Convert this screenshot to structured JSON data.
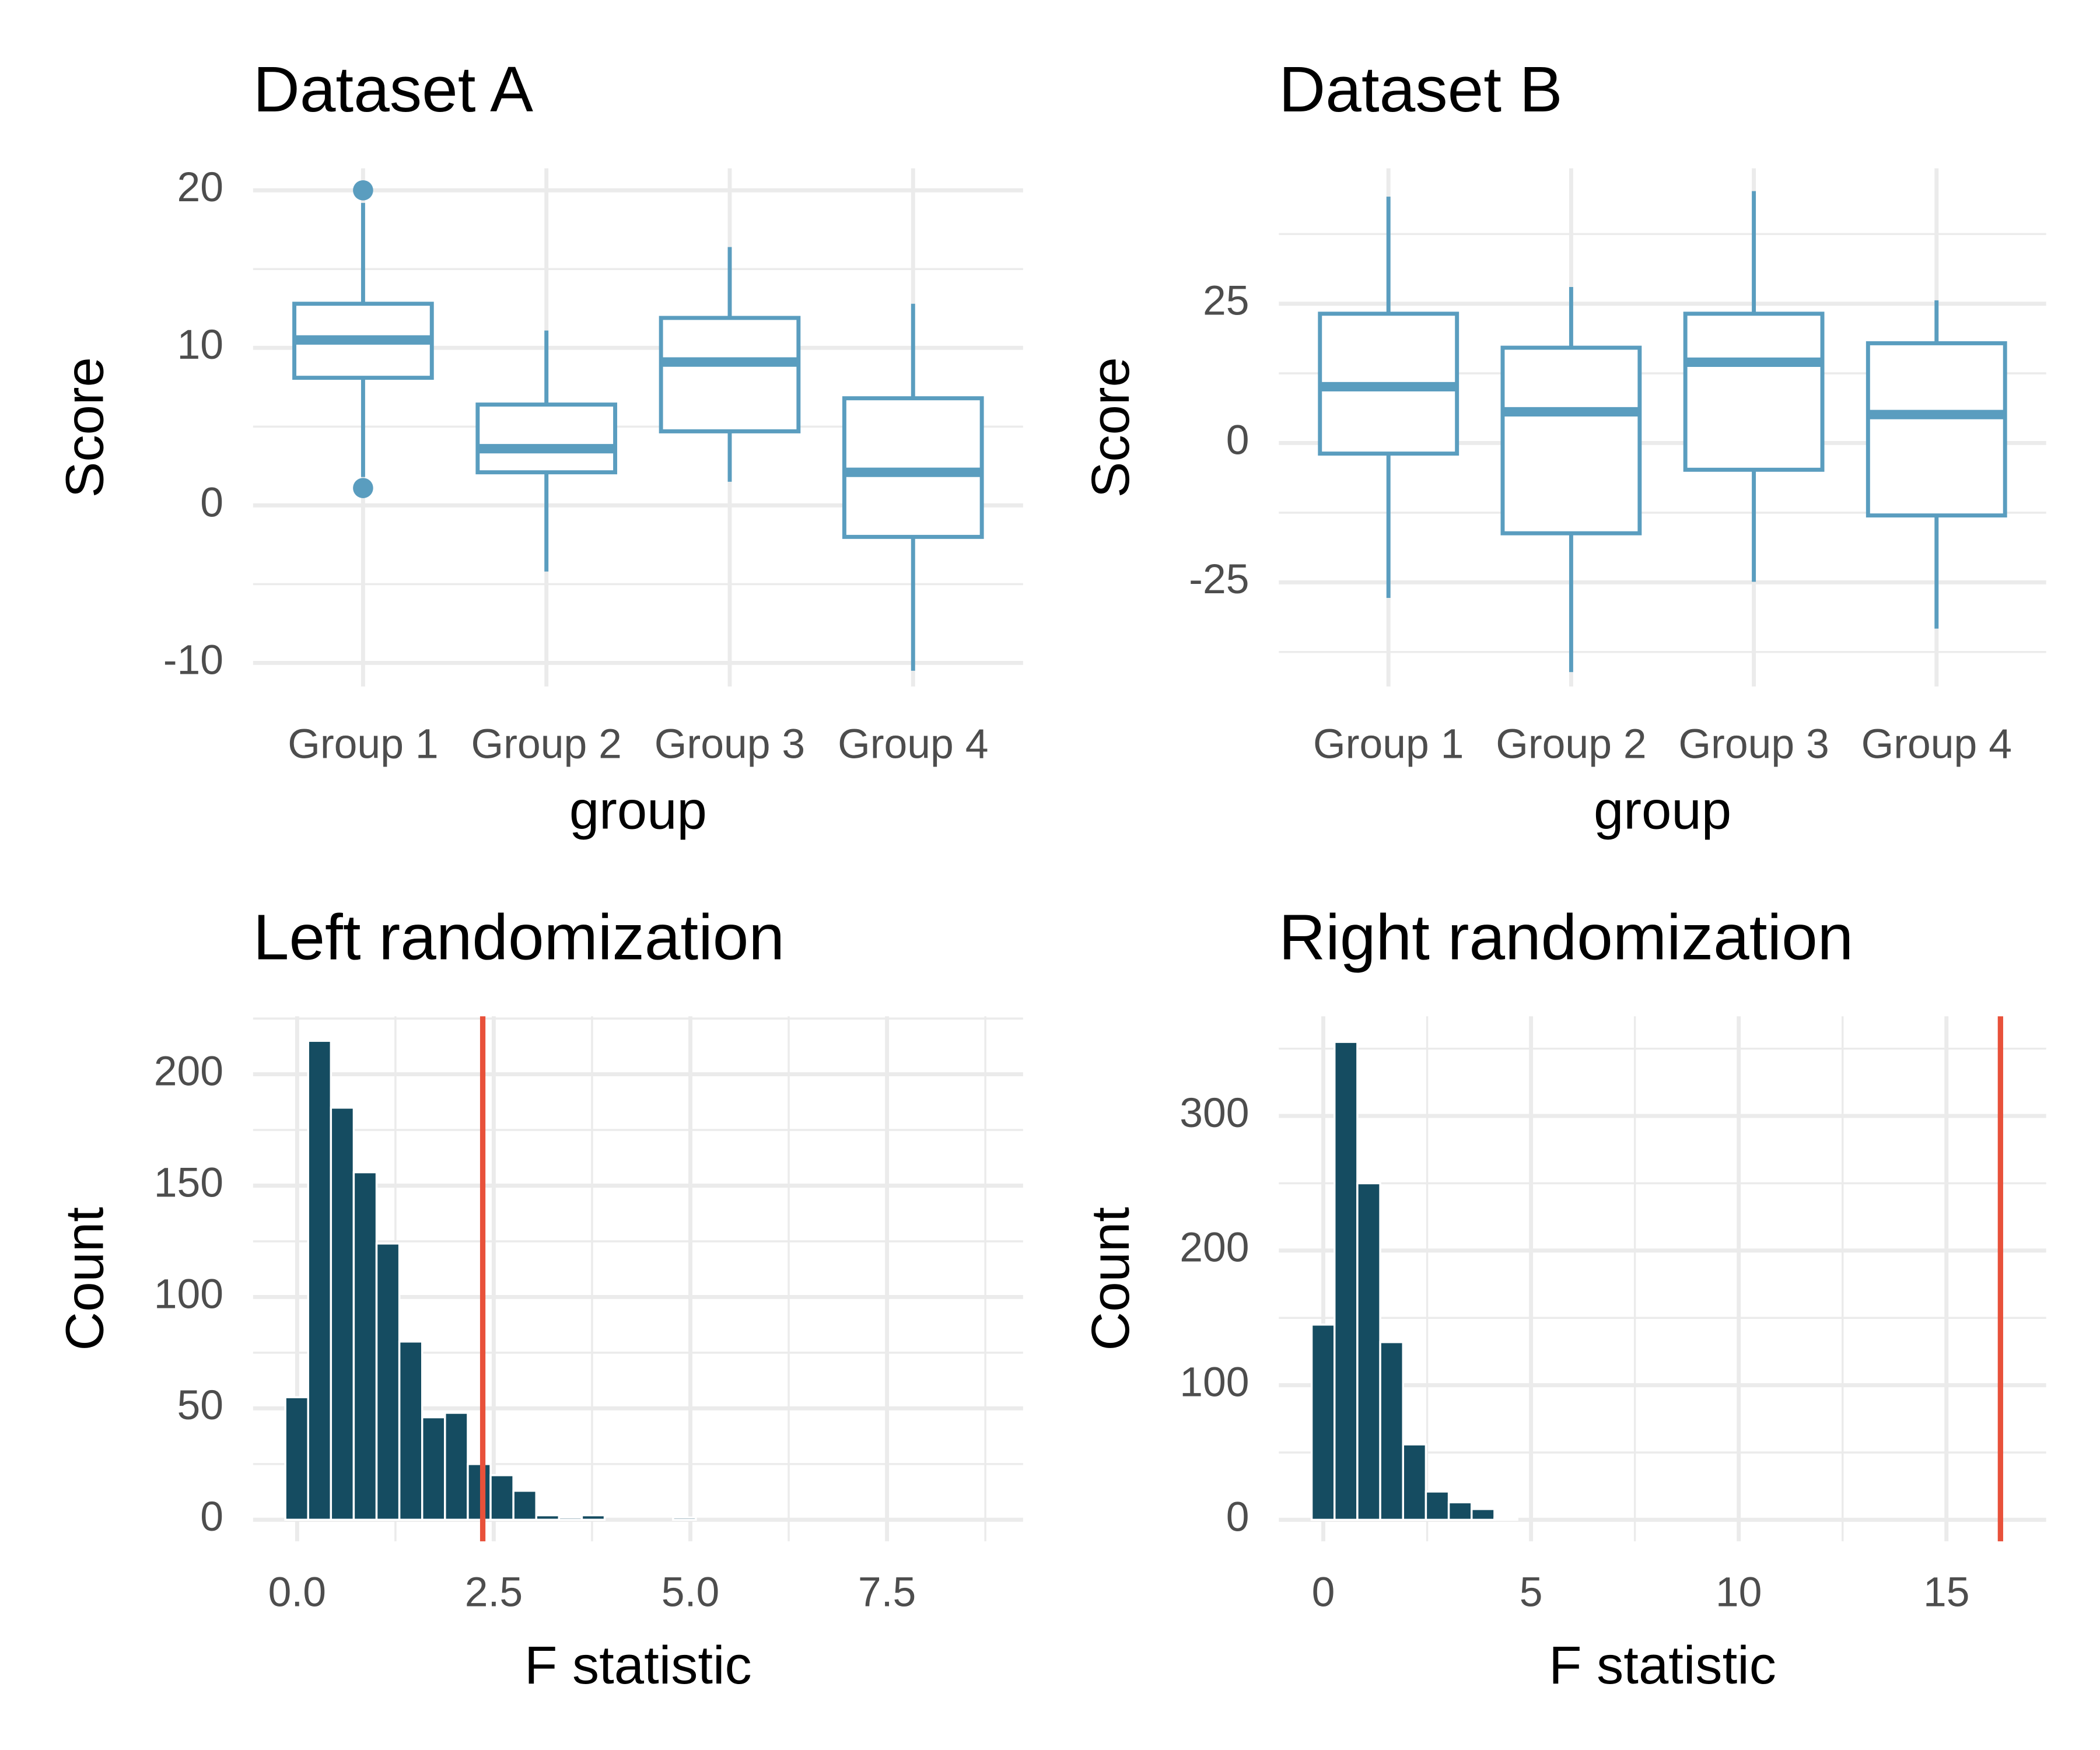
{
  "chart_data": [
    {
      "type": "boxplot",
      "title": "Dataset A",
      "x_label": "group",
      "y_label": "Score",
      "categories": [
        "Group 1",
        "Group 2",
        "Group 3",
        "Group 4"
      ],
      "stats": [
        {
          "min": 1.8,
          "q1": 8.1,
          "median": 10.5,
          "q3": 12.8,
          "max": 19.2
        },
        {
          "min": -4.2,
          "q1": 2.1,
          "median": 3.6,
          "q3": 6.4,
          "max": 11.1
        },
        {
          "min": 1.5,
          "q1": 4.7,
          "median": 9.1,
          "q3": 11.9,
          "max": 16.4
        },
        {
          "min": -10.5,
          "q1": -2.0,
          "median": 2.1,
          "q3": 6.8,
          "max": 12.8
        }
      ],
      "outliers": [
        [
          20,
          1.1
        ],
        [],
        [],
        []
      ],
      "color": "#5a9dbf",
      "ylim": [
        -11.5,
        21.4
      ],
      "yticks": [
        -10,
        0,
        10,
        20
      ],
      "grid": true
    },
    {
      "type": "boxplot",
      "title": "Dataset B",
      "x_label": "group",
      "y_label": "Score",
      "categories": [
        "Group 1",
        "Group 2",
        "Group 3",
        "Group 4"
      ],
      "stats": [
        {
          "min": -27.8,
          "q1": -1.9,
          "median": 10.1,
          "q3": 23.2,
          "max": 44.2
        },
        {
          "min": -41.1,
          "q1": -16.2,
          "median": 5.6,
          "q3": 17.1,
          "max": 28.0
        },
        {
          "min": -24.9,
          "q1": -4.8,
          "median": 14.5,
          "q3": 23.2,
          "max": 45.2
        },
        {
          "min": -33.3,
          "q1": -13.0,
          "median": 5.1,
          "q3": 17.9,
          "max": 25.6
        }
      ],
      "outliers": [
        [],
        [],
        [],
        []
      ],
      "color": "#5a9dbf",
      "ylim": [
        -43.7,
        49.3
      ],
      "yticks": [
        -25,
        0,
        25
      ],
      "grid": true
    },
    {
      "type": "histogram",
      "title": "Left randomization",
      "x_label": "F statistic",
      "y_label": "Count",
      "bins": [
        -0.15,
        0.14,
        0.43,
        0.72,
        1.01,
        1.3,
        1.59,
        1.88,
        2.17,
        2.46,
        2.75,
        3.04,
        3.33,
        3.62,
        3.91,
        4.2,
        4.49,
        4.78,
        5.07,
        5.36,
        5.65,
        5.94,
        6.23,
        6.52,
        6.81,
        7.1,
        7.39,
        7.68,
        7.97,
        8.26,
        8.55,
        8.84
      ],
      "values": [
        55,
        215,
        185,
        156,
        124,
        80,
        46,
        48,
        25,
        20,
        13,
        2,
        1,
        2,
        0,
        0,
        0,
        1,
        0,
        0,
        0,
        0,
        0,
        0,
        0,
        0,
        0,
        0,
        0,
        0,
        0
      ],
      "color": "#154c61",
      "vline": 2.36,
      "vline_color": "#e8513a",
      "xlim": [
        -0.56,
        9.23
      ],
      "xticks": [
        {
          "value": 0,
          "label": "0.0"
        },
        2.5,
        {
          "value": 5,
          "label": "5.0"
        },
        7.5
      ],
      "ylim": [
        -9.7,
        226
      ],
      "yticks": [
        0,
        50,
        100,
        150,
        200
      ],
      "grid": true
    },
    {
      "type": "histogram",
      "title": "Right randomization",
      "x_label": "F statistic",
      "y_label": "Count",
      "bins": [
        -0.28,
        0.27,
        0.82,
        1.37,
        1.92,
        2.47,
        3.02,
        3.57,
        4.12,
        4.67
      ],
      "values": [
        145,
        355,
        250,
        132,
        56,
        21,
        13,
        8,
        1
      ],
      "color": "#154c61",
      "vline": 16.3,
      "vline_color": "#e8513a",
      "xlim": [
        -1.07,
        17.4
      ],
      "xticks": [
        0,
        5,
        10,
        15
      ],
      "ylim": [
        -16,
        374
      ],
      "yticks": [
        0,
        100,
        200,
        300
      ],
      "grid": true
    }
  ]
}
